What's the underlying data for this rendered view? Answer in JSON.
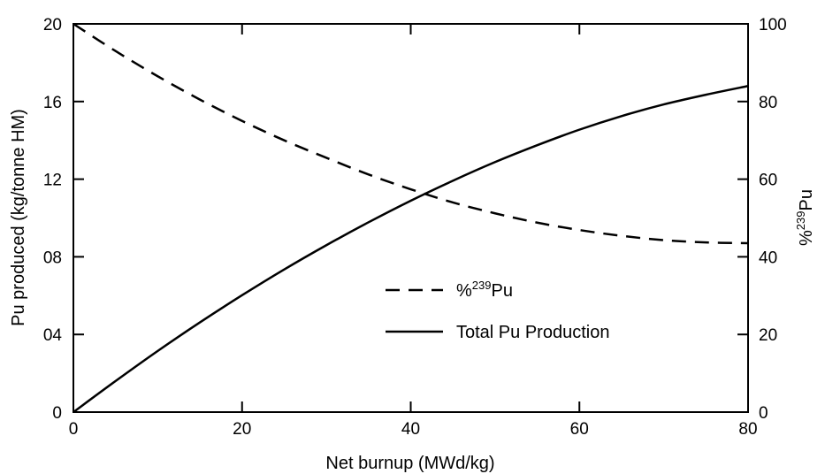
{
  "chart_data": {
    "type": "line",
    "xlabel": "Net burnup (MWd/kg)",
    "ylabel_left": "Pu produced (kg/tonne HM)",
    "ylabel_right": {
      "prefix": "%",
      "superscript": "239",
      "suffix": "Pu"
    },
    "xlim": [
      0,
      80
    ],
    "ylim_left": [
      0,
      20
    ],
    "ylim_right": [
      0,
      100
    ],
    "x_ticks": [
      {
        "value": 0,
        "label": "0"
      },
      {
        "value": 20,
        "label": "20"
      },
      {
        "value": 40,
        "label": "40"
      },
      {
        "value": 60,
        "label": "60"
      },
      {
        "value": 80,
        "label": "80"
      }
    ],
    "y_left_ticks": [
      {
        "value": 0,
        "label": "0"
      },
      {
        "value": 4,
        "label": "04"
      },
      {
        "value": 8,
        "label": "08"
      },
      {
        "value": 12,
        "label": "12"
      },
      {
        "value": 16,
        "label": "16"
      },
      {
        "value": 20,
        "label": "20"
      }
    ],
    "y_right_ticks": [
      {
        "value": 0,
        "label": "0"
      },
      {
        "value": 20,
        "label": "20"
      },
      {
        "value": 40,
        "label": "40"
      },
      {
        "value": 60,
        "label": "60"
      },
      {
        "value": 80,
        "label": "80"
      },
      {
        "value": 100,
        "label": "100"
      }
    ],
    "grid": false,
    "legend_position": "center-right",
    "series": [
      {
        "key": "pu239",
        "axis": "right",
        "style": "dashed",
        "color": "#000000",
        "legend": {
          "prefix": "%",
          "superscript": "239",
          "suffix": "Pu"
        },
        "x": [
          0,
          5,
          10,
          15,
          20,
          25,
          30,
          35,
          40,
          45,
          50,
          55,
          60,
          65,
          70,
          75,
          80
        ],
        "y": [
          100,
          93,
          86.5,
          80.5,
          75,
          70,
          65.5,
          61.2,
          57.4,
          54,
          51.2,
          48.8,
          46.9,
          45.4,
          44.3,
          43.7,
          43.5
        ]
      },
      {
        "key": "total",
        "axis": "left",
        "style": "solid",
        "color": "#000000",
        "legend": {
          "text": "Total Pu Production"
        },
        "x": [
          0,
          5,
          10,
          15,
          20,
          25,
          30,
          35,
          40,
          45,
          50,
          55,
          60,
          65,
          70,
          75,
          80
        ],
        "y": [
          0,
          1.6,
          3.15,
          4.62,
          6.02,
          7.35,
          8.6,
          9.78,
          10.89,
          11.92,
          12.88,
          13.75,
          14.55,
          15.25,
          15.85,
          16.35,
          16.8
        ]
      }
    ]
  }
}
